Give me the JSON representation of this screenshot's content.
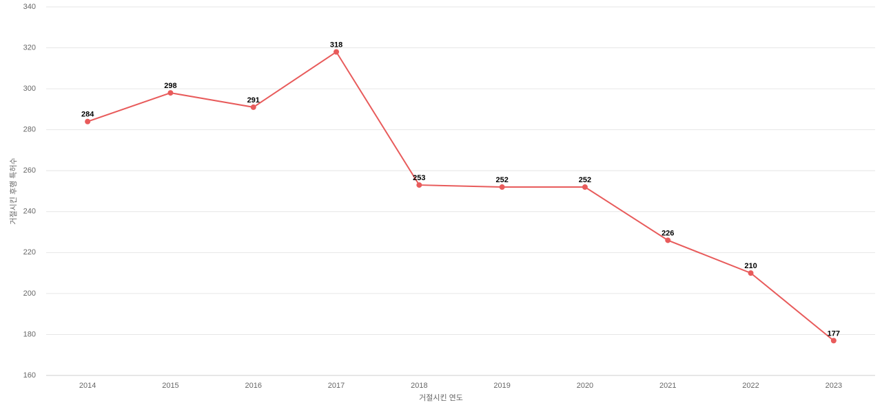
{
  "chart_data": {
    "type": "line",
    "x_label": "거절시킨 연도",
    "y_label": "거절시킨 후행 특허수",
    "categories": [
      "2014",
      "2015",
      "2016",
      "2017",
      "2018",
      "2019",
      "2020",
      "2021",
      "2022",
      "2023"
    ],
    "series": [
      {
        "name": "거절시킨 후행 특허수",
        "color": "#e85b5b",
        "values": [
          284,
          298,
          291,
          318,
          253,
          252,
          252,
          226,
          210,
          177
        ]
      }
    ],
    "ylim": [
      160,
      340
    ],
    "yticks": [
      160,
      180,
      200,
      220,
      240,
      260,
      280,
      300,
      320,
      340
    ],
    "grid": true,
    "data_labels": true
  }
}
